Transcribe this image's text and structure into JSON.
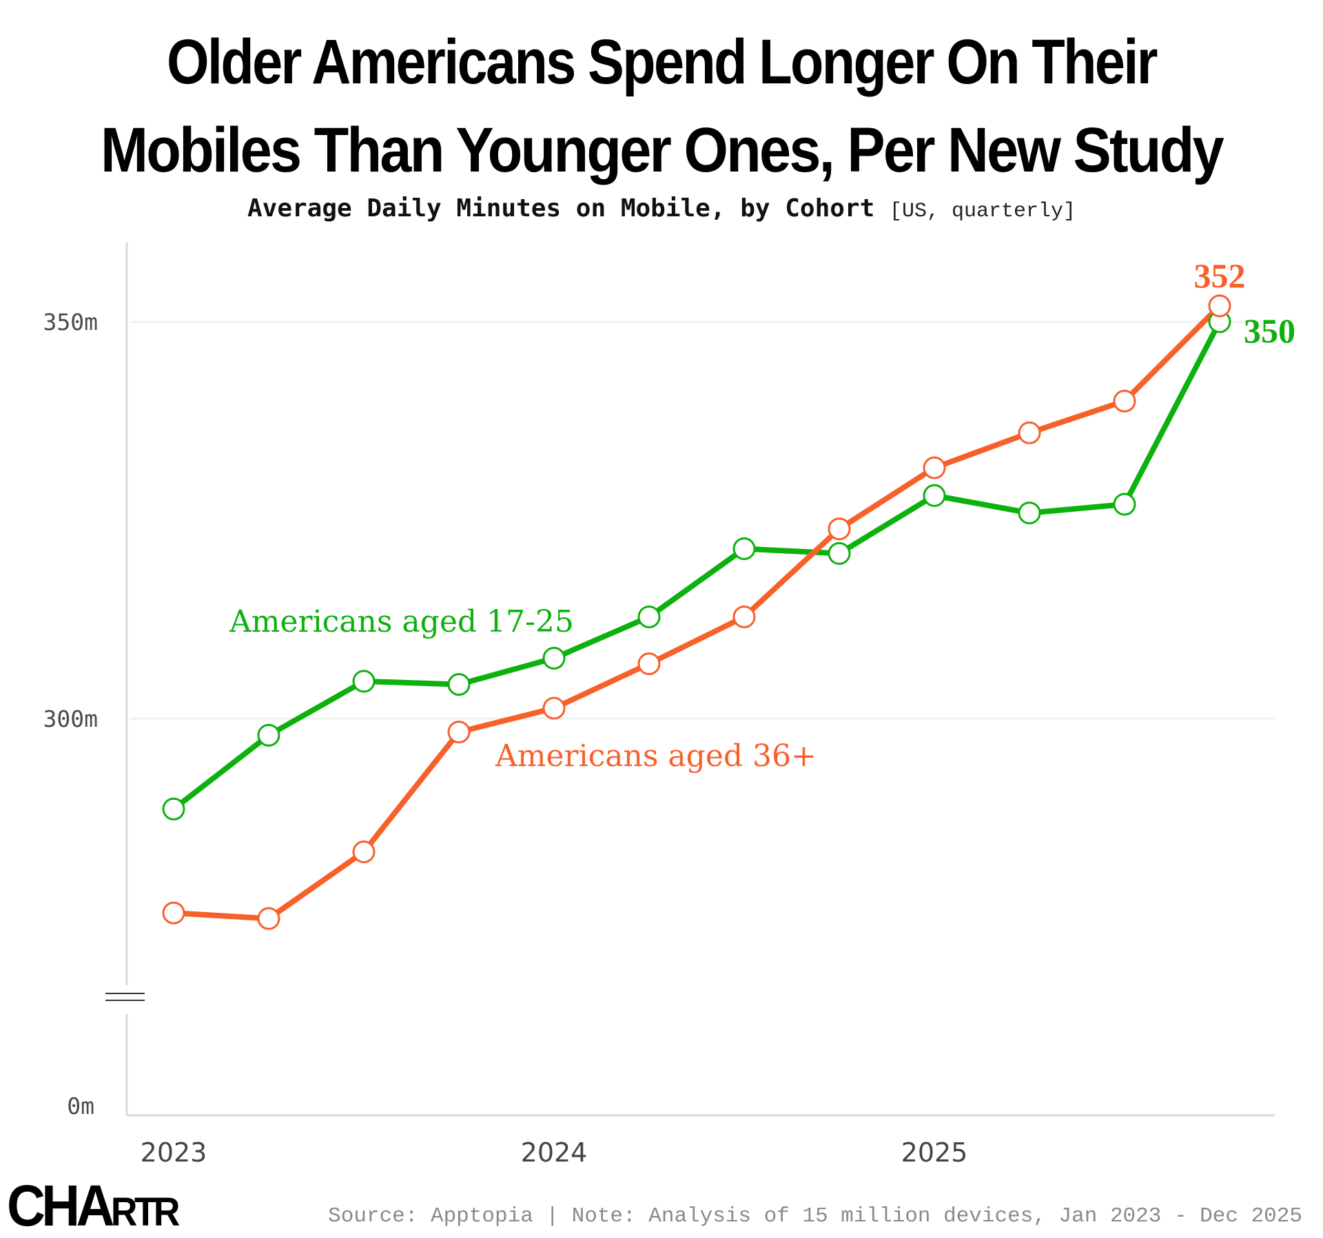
{
  "title_line1": "Older Americans Spend Longer On Their",
  "title_line2": "Mobiles Than Younger Ones, Per New Study",
  "subtitle": "Average Daily Minutes on Mobile, by Cohort",
  "subtitle_note": "[US, quarterly]",
  "logo": {
    "big": "CHA",
    "mid": "R",
    "small": "TR"
  },
  "footer": "Source: Apptopia | Note: Analysis of 15 million devices, Jan 2023 - Dec 2025",
  "colors": {
    "green": "#0DB10D",
    "orange": "#F8602A",
    "axis": "#d9d9d9",
    "grid": "#f0f0f0"
  },
  "chart_data": {
    "type": "line",
    "title": "Older Americans Spend Longer On Their Mobiles Than Younger Ones, Per New Study",
    "subtitle": "Average Daily Minutes on Mobile, by Cohort [US, quarterly]",
    "xlabel": "",
    "ylabel": "",
    "x": [
      "2023 Q1",
      "2023 Q2",
      "2023 Q3",
      "2023 Q4",
      "2024 Q1",
      "2024 Q2",
      "2024 Q3",
      "2024 Q4",
      "2025 Q1",
      "2025 Q2",
      "2025 Q3",
      "2025 Q4"
    ],
    "x_ticks": [
      {
        "label": "2023",
        "index": 0
      },
      {
        "label": "2024",
        "index": 4
      },
      {
        "label": "2025",
        "index": 8
      }
    ],
    "y_ticks": [
      {
        "label": "0m",
        "value": 0
      },
      {
        "label": "300m",
        "value": 300
      },
      {
        "label": "350m",
        "value": 350
      }
    ],
    "ylim": [
      0,
      355
    ],
    "y_axis_break": [
      0,
      268
    ],
    "grid": true,
    "series": [
      {
        "name": "Americans aged 17-25",
        "color": "#0DB10D",
        "values": [
          288.6,
          297.9,
          304.7,
          304.3,
          307.6,
          312.8,
          321.4,
          320.8,
          328.1,
          325.9,
          327.0,
          350
        ],
        "end_label": "350"
      },
      {
        "name": "Americans aged 36+",
        "color": "#F8602A",
        "values": [
          275.5,
          274.8,
          283.2,
          298.3,
          301.3,
          306.9,
          312.8,
          323.9,
          331.6,
          336.0,
          340.0,
          352
        ],
        "end_label": "352"
      }
    ]
  }
}
